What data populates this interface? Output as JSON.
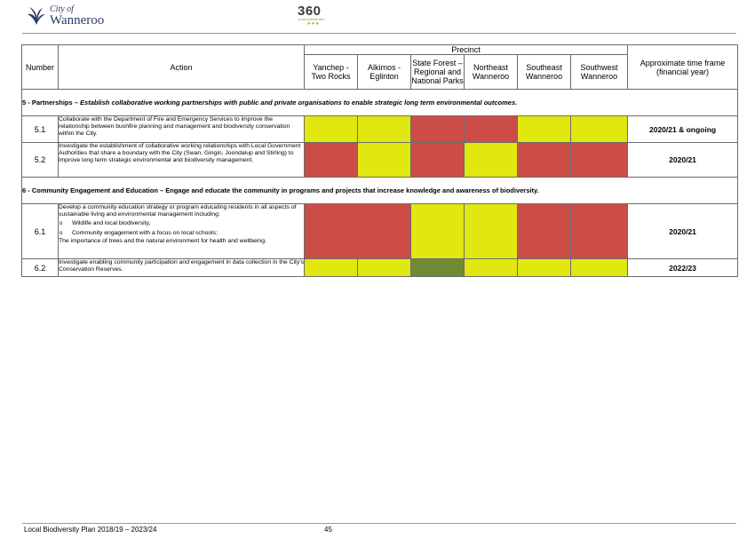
{
  "header": {
    "logo_city_of": "City of",
    "logo_wanneroo": "Wanneroo",
    "logo_360": "360",
    "logo_360_sub": "environmental",
    "logo_360_dots": "●●●"
  },
  "table": {
    "headers": {
      "number": "Number",
      "action": "Action",
      "precinct": "Precinct",
      "timeframe": "Approximate time frame (financial year)",
      "precincts": [
        "Yanchep - Two Rocks",
        "Alkimos - Eglinton",
        "State Forest – Regional and National Parks",
        "Northeast Wanneroo",
        "Southeast Wanneroo",
        "Southwest Wanneroo"
      ]
    },
    "section5": {
      "prefix": "5 - Partnerships – ",
      "objective": "Establish collaborative working partnerships with public and private organisations to enable strategic long term environmental outcomes."
    },
    "section6": {
      "text": "6 - Community Engagement and Education – Engage and educate the community in programs and projects that increase knowledge and awareness of biodiversity."
    },
    "rows": [
      {
        "number": "5.1",
        "action": "Collaborate with the Department of Fire and Emergency Services to improve the relationship between bushfire planning and management and biodiversity conservation within the City.",
        "ratings": [
          "yellow",
          "yellow",
          "red",
          "red",
          "yellow",
          "yellow"
        ],
        "timeframe": "2020/21 & ongoing"
      },
      {
        "number": "5.2",
        "action": "Investigate the establishment of collaborative working relationships with Local Government Authorities that share a boundary with the City (Swan, Gingin, Joondalup and Stirling) to improve long term strategic environmental and biodiversity management.",
        "ratings": [
          "red",
          "yellow",
          "red",
          "yellow",
          "red",
          "red"
        ],
        "timeframe": "2020/21"
      },
      {
        "number": "6.1",
        "action_intro": "Develop a community education strategy or program educating residents in all aspects of sustainable living and environmental management including:",
        "bullets": [
          "Wildlife and local biodiversity,",
          "Community engagement with a focus on local schools;"
        ],
        "bullet_symbol": "o",
        "action_outro": "The importance of trees and the natural environment for health and wellbeing.",
        "ratings": [
          "red",
          "red",
          "yellow",
          "yellow",
          "red",
          "red"
        ],
        "timeframe": "2020/21"
      },
      {
        "number": "6.2",
        "action": "Investigate enabling community participation and engagement in data collection in the City's Conservation Reserves.",
        "ratings": [
          "yellow",
          "yellow",
          "green",
          "yellow",
          "yellow",
          "yellow"
        ],
        "timeframe": "2022/23"
      }
    ]
  },
  "footer": {
    "title": "Local Biodiversity Plan 2018/19 – 2023/24",
    "page": "45"
  },
  "colors": {
    "red": "#cc4c48",
    "yellow": "#e0e810",
    "green": "#6f8a35"
  },
  "icons": {
    "city_logo": "city-of-wanneroo-emblem-icon",
    "brand_logo": "360-environmental-logo-icon"
  }
}
